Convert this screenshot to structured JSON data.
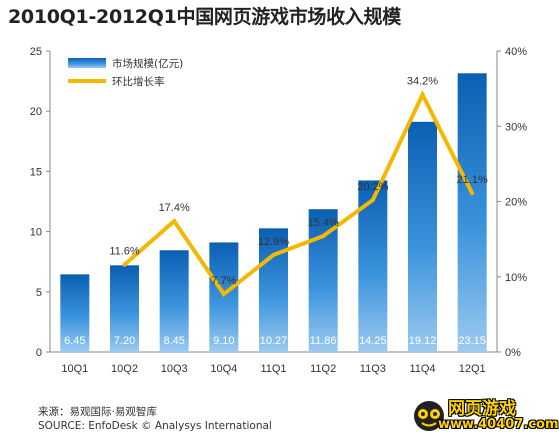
{
  "chart_data": {
    "type": "bar",
    "title": "2010Q1-2012Q1中国网页游戏市场收入规模",
    "categories": [
      "10Q1",
      "10Q2",
      "10Q3",
      "10Q4",
      "11Q1",
      "11Q2",
      "11Q3",
      "11Q4",
      "12Q1"
    ],
    "series": [
      {
        "name": "市场规模(亿元)",
        "type": "bar",
        "axis": "left",
        "color": "#1f78c8",
        "values": [
          6.45,
          7.2,
          8.45,
          9.1,
          10.27,
          11.86,
          14.25,
          19.12,
          23.15
        ],
        "labels": [
          "6.45",
          "7.20",
          "8.45",
          "9.10",
          "10.27",
          "11.86",
          "14.25",
          "19.12",
          "23.15"
        ]
      },
      {
        "name": "环比增长率",
        "type": "line",
        "axis": "right",
        "color": "#f5b800",
        "values": [
          null,
          11.6,
          17.4,
          7.7,
          12.9,
          15.4,
          20.2,
          34.2,
          21.1
        ],
        "labels": [
          null,
          "11.6%",
          "17.4%",
          "7.7%",
          "12.9%",
          "15.4%",
          "20.2%",
          "34.2%",
          "21.1%"
        ]
      }
    ],
    "y_left": {
      "ylim": [
        0,
        25
      ],
      "ticks": [
        "0",
        "5",
        "10",
        "15",
        "20",
        "25"
      ]
    },
    "y_right": {
      "ylim": [
        0,
        40
      ],
      "ticks": [
        "0%",
        "10%",
        "20%",
        "30%",
        "40%"
      ]
    },
    "grid": false,
    "legend_position": "top-left"
  },
  "source": {
    "cn": "来源：易观国际·易观智库",
    "en": "SOURCE: EnfoDesk © Analysys International"
  },
  "watermark": {
    "name": "网页游戏",
    "url": "www.40407.com"
  }
}
